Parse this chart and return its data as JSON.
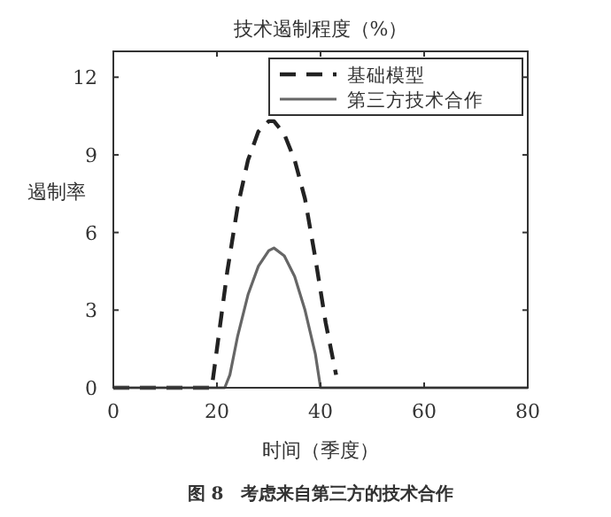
{
  "chart_data": {
    "type": "line",
    "title": "技术遏制程度（%）",
    "xlabel": "时间（季度）",
    "ylabel": "遏制率",
    "annotations": [
      "图 8　考虑来自第三方的技术合作"
    ],
    "xlim": [
      0,
      80
    ],
    "xticks": [
      0,
      20,
      40,
      60,
      80
    ],
    "ylim": [
      0,
      13
    ],
    "yticks": [
      0,
      3,
      6,
      9,
      12
    ],
    "grid": false,
    "legend": "top right",
    "series": [
      {
        "name": "基础模型",
        "color": "#222222",
        "line_style": "dashed",
        "x": [
          0,
          19,
          20,
          22,
          24,
          26,
          28,
          30,
          31,
          33,
          35,
          37,
          39,
          41,
          43
        ],
        "values": [
          0,
          0,
          1.5,
          4.5,
          7,
          8.8,
          9.9,
          10.3,
          10.3,
          9.8,
          8.8,
          7.3,
          5,
          2.5,
          0.5
        ]
      },
      {
        "name": "第三方技术合作",
        "color": "#666666",
        "line_style": "solid",
        "x": [
          0,
          21.5,
          22.5,
          24,
          26,
          28,
          30,
          31,
          33,
          35,
          37,
          39,
          40,
          80
        ],
        "values": [
          0,
          0,
          0.5,
          2,
          3.6,
          4.7,
          5.3,
          5.4,
          5.1,
          4.3,
          3,
          1.3,
          0,
          0
        ]
      }
    ]
  }
}
